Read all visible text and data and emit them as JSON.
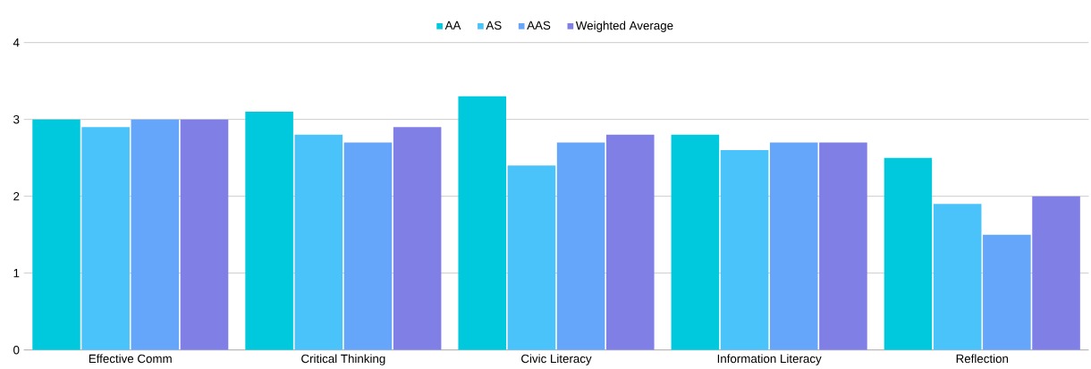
{
  "chart_data": {
    "type": "bar",
    "categories": [
      "Effective Comm",
      "Critical Thinking",
      "Civic Literacy",
      "Information Literacy",
      "Reflection"
    ],
    "series": [
      {
        "name": "AA",
        "color": "#00c9dd",
        "values": [
          3.0,
          3.1,
          3.3,
          2.8,
          2.5
        ]
      },
      {
        "name": "AS",
        "color": "#4ac3fb",
        "values": [
          2.9,
          2.8,
          2.4,
          2.6,
          1.9
        ]
      },
      {
        "name": "AAS",
        "color": "#66a6fa",
        "values": [
          3.0,
          2.7,
          2.7,
          2.7,
          1.5
        ]
      },
      {
        "name": "Weighted Average",
        "color": "#7f7fe6",
        "values": [
          3.0,
          2.9,
          2.8,
          2.7,
          2.0
        ]
      }
    ],
    "ylim": [
      0,
      4
    ],
    "yticks": [
      0,
      1,
      2,
      3,
      4
    ],
    "grid": "y",
    "legend": "top"
  }
}
